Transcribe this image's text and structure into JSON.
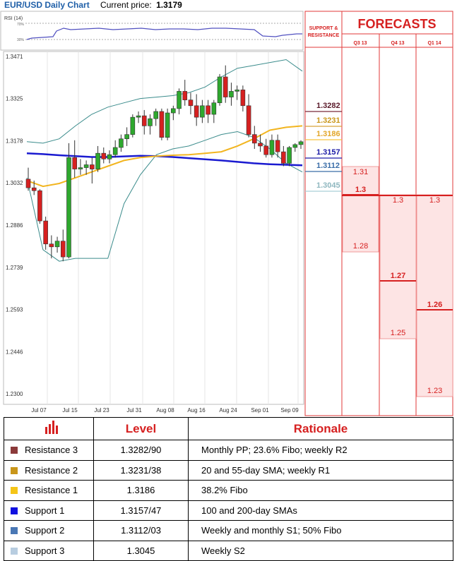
{
  "header": {
    "title": "EUR/USD Daily Chart",
    "price_label": "Current price:",
    "price_value": "1.3179"
  },
  "panels": {
    "rsi_label": "RSI (14)",
    "rsi_levels": [
      "70%",
      "30%"
    ],
    "sr_title": "SUPPORT & RESISTANCE",
    "forecast_title": "FORECASTS",
    "forecast_cols": [
      "Q3 13",
      "Q4 13",
      "Q1 14"
    ]
  },
  "chart_data": {
    "type": "candlestick",
    "y_ticks": [
      "1.3471",
      "1.3325",
      "1.3178",
      "1.3032",
      "1.2886",
      "1.2739",
      "1.2593",
      "1.2446",
      "1.2300"
    ],
    "ylim": [
      1.23,
      1.3471
    ],
    "x_ticks": [
      "Jul 07",
      "Jul 15",
      "Jul 23",
      "Jul 31",
      "Aug 08",
      "Aug 16",
      "Aug 24",
      "Sep 01",
      "Sep 09"
    ],
    "candles": [
      [
        1.3045,
        1.3085,
        1.3005,
        1.3015
      ],
      [
        1.3015,
        1.304,
        1.299,
        1.3005
      ],
      [
        1.3005,
        1.301,
        1.289,
        1.29
      ],
      [
        1.29,
        1.2915,
        1.28,
        1.282
      ],
      [
        1.282,
        1.285,
        1.277,
        1.281
      ],
      [
        1.281,
        1.2845,
        1.279,
        1.283
      ],
      [
        1.283,
        1.287,
        1.276,
        1.2775
      ],
      [
        1.2775,
        1.317,
        1.277,
        1.312
      ],
      [
        1.312,
        1.318,
        1.305,
        1.308
      ],
      [
        1.308,
        1.3115,
        1.306,
        1.3085
      ],
      [
        1.3085,
        1.311,
        1.306,
        1.3095
      ],
      [
        1.3095,
        1.312,
        1.303,
        1.308
      ],
      [
        1.308,
        1.316,
        1.307,
        1.3135
      ],
      [
        1.3135,
        1.3155,
        1.31,
        1.3115
      ],
      [
        1.3115,
        1.3145,
        1.31,
        1.313
      ],
      [
        1.313,
        1.318,
        1.312,
        1.3155
      ],
      [
        1.3155,
        1.32,
        1.314,
        1.3185
      ],
      [
        1.3185,
        1.3225,
        1.316,
        1.32
      ],
      [
        1.32,
        1.327,
        1.319,
        1.326
      ],
      [
        1.326,
        1.328,
        1.324,
        1.3265
      ],
      [
        1.3265,
        1.3285,
        1.32,
        1.323
      ],
      [
        1.323,
        1.327,
        1.32,
        1.3255
      ],
      [
        1.3255,
        1.329,
        1.323,
        1.328
      ],
      [
        1.328,
        1.329,
        1.318,
        1.319
      ],
      [
        1.319,
        1.329,
        1.318,
        1.3275
      ],
      [
        1.3275,
        1.33,
        1.325,
        1.329
      ],
      [
        1.329,
        1.336,
        1.327,
        1.335
      ],
      [
        1.335,
        1.339,
        1.33,
        1.332
      ],
      [
        1.332,
        1.3345,
        1.327,
        1.33
      ],
      [
        1.33,
        1.334,
        1.323,
        1.326
      ],
      [
        1.326,
        1.332,
        1.324,
        1.33
      ],
      [
        1.33,
        1.332,
        1.324,
        1.327
      ],
      [
        1.327,
        1.332,
        1.324,
        1.331
      ],
      [
        1.331,
        1.341,
        1.33,
        1.34
      ],
      [
        1.34,
        1.344,
        1.331,
        1.333
      ],
      [
        1.333,
        1.338,
        1.33,
        1.335
      ],
      [
        1.335,
        1.337,
        1.332,
        1.3355
      ],
      [
        1.3355,
        1.337,
        1.328,
        1.33
      ],
      [
        1.33,
        1.334,
        1.319,
        1.32
      ],
      [
        1.32,
        1.323,
        1.315,
        1.317
      ],
      [
        1.317,
        1.32,
        1.314,
        1.316
      ],
      [
        1.316,
        1.3185,
        1.312,
        1.313
      ],
      [
        1.313,
        1.32,
        1.312,
        1.318
      ],
      [
        1.318,
        1.32,
        1.312,
        1.314
      ],
      [
        1.314,
        1.316,
        1.309,
        1.31
      ],
      [
        1.31,
        1.316,
        1.309,
        1.3155
      ],
      [
        1.3155,
        1.317,
        1.314,
        1.3165
      ],
      [
        1.3165,
        1.318,
        1.315,
        1.3175
      ]
    ],
    "series_sma_short": [
      1.304,
      1.302,
      1.303,
      1.305,
      1.307,
      1.309,
      1.311,
      1.312,
      1.3125,
      1.3128,
      1.313,
      1.3135,
      1.314,
      1.316,
      1.3185,
      1.3215,
      1.3225,
      1.323
    ],
    "series_sma_long": [
      1.3135,
      1.3132,
      1.3128,
      1.3125,
      1.3122,
      1.3122,
      1.3124,
      1.3126,
      1.3125,
      1.3122,
      1.3118,
      1.3114,
      1.311,
      1.3105,
      1.31,
      1.3097,
      1.3095,
      1.3093
    ],
    "series_bb_upper": [
      1.3175,
      1.317,
      1.3185,
      1.323,
      1.327,
      1.3295,
      1.331,
      1.3325,
      1.333,
      1.3335,
      1.3345,
      1.3365,
      1.34,
      1.343,
      1.344,
      1.345,
      1.346,
      1.342
    ],
    "series_bb_lower": [
      1.305,
      1.28,
      1.276,
      1.277,
      1.277,
      1.277,
      1.296,
      1.306,
      1.313,
      1.315,
      1.316,
      1.318,
      1.32,
      1.321,
      1.319,
      1.315,
      1.31,
      1.307
    ]
  },
  "sr_levels": [
    {
      "value": "1.3282",
      "color": "#7a2a3a"
    },
    {
      "value": "1.3231",
      "color": "#d6a53a"
    },
    {
      "value": "1.3186",
      "color": "#f6c342"
    },
    {
      "value": "1.3157",
      "color": "#1a1aa6"
    },
    {
      "value": "1.3112",
      "color": "#3b6ea8"
    },
    {
      "value": "1.3045",
      "color": "#a9cfd6"
    }
  ],
  "forecasts": [
    {
      "col": 0,
      "upper": "1.31",
      "mid": "1.3",
      "lower": "1.28"
    },
    {
      "col": 1,
      "upper": "1.3",
      "mid": "1.27",
      "lower": "1.25"
    },
    {
      "col": 2,
      "upper": "1.3",
      "mid": "1.26",
      "lower": "1.23"
    }
  ],
  "table": {
    "headers": [
      "Level",
      "Rationale"
    ],
    "rows": [
      {
        "name": "Resistance 3",
        "level": "1.3282/90",
        "rationale": "Monthly PP; 23.6% Fibo; weekly R2",
        "color": "#8b3a3a"
      },
      {
        "name": "Resistance 2",
        "level": "1.3231/38",
        "rationale": "20 and 55-day SMA; weekly R1",
        "color": "#c9961a"
      },
      {
        "name": "Resistance 1",
        "level": "1.3186",
        "rationale": "38.2% Fibo",
        "color": "#f5c518"
      },
      {
        "name": "Support 1",
        "level": "1.3157/47",
        "rationale": "100 and 200-day SMAs",
        "color": "#1010e0"
      },
      {
        "name": "Support 2",
        "level": "1.3112/03",
        "rationale": "Weekly and monthly S1; 50% Fibo",
        "color": "#4a78b5"
      },
      {
        "name": "Support 3",
        "level": "1.3045",
        "rationale": "Weekly S2",
        "color": "#b8cde0"
      }
    ]
  }
}
